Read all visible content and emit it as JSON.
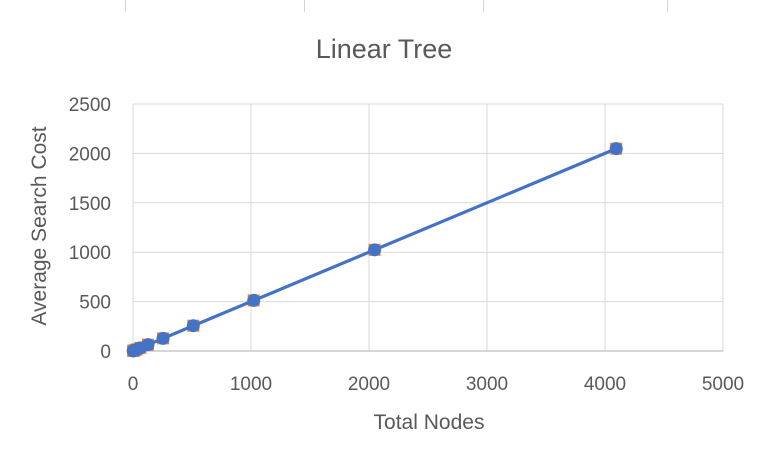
{
  "chart_data": {
    "type": "scatter",
    "title": "Linear Tree",
    "xlabel": "Total Nodes",
    "ylabel": "Average Search Cost",
    "xlim": [
      0,
      5000
    ],
    "ylim": [
      0,
      2500
    ],
    "xticks": [
      0,
      1000,
      2000,
      3000,
      4000,
      5000
    ],
    "yticks": [
      0,
      500,
      1000,
      1500,
      2000,
      2500
    ],
    "grid": true,
    "legend": "none",
    "series": [
      {
        "marker": "square",
        "color": "#ED7D31",
        "x": [
          1,
          3,
          7,
          15,
          31,
          63,
          127,
          255,
          511,
          1023,
          2047,
          4095
        ],
        "y": [
          1,
          2,
          4,
          8,
          16,
          32,
          64,
          128,
          256,
          512,
          1024,
          2048
        ]
      },
      {
        "marker": "circle",
        "color": "#4472C4",
        "x": [
          1,
          3,
          7,
          15,
          31,
          63,
          127,
          255,
          511,
          1023,
          2047,
          4095
        ],
        "y": [
          1,
          2,
          4,
          8,
          16,
          32,
          64,
          128,
          256,
          512,
          1024,
          2048
        ]
      }
    ],
    "trendline": {
      "color": "#4472C4",
      "x": [
        0,
        4095
      ],
      "y": [
        0,
        2048
      ]
    }
  }
}
